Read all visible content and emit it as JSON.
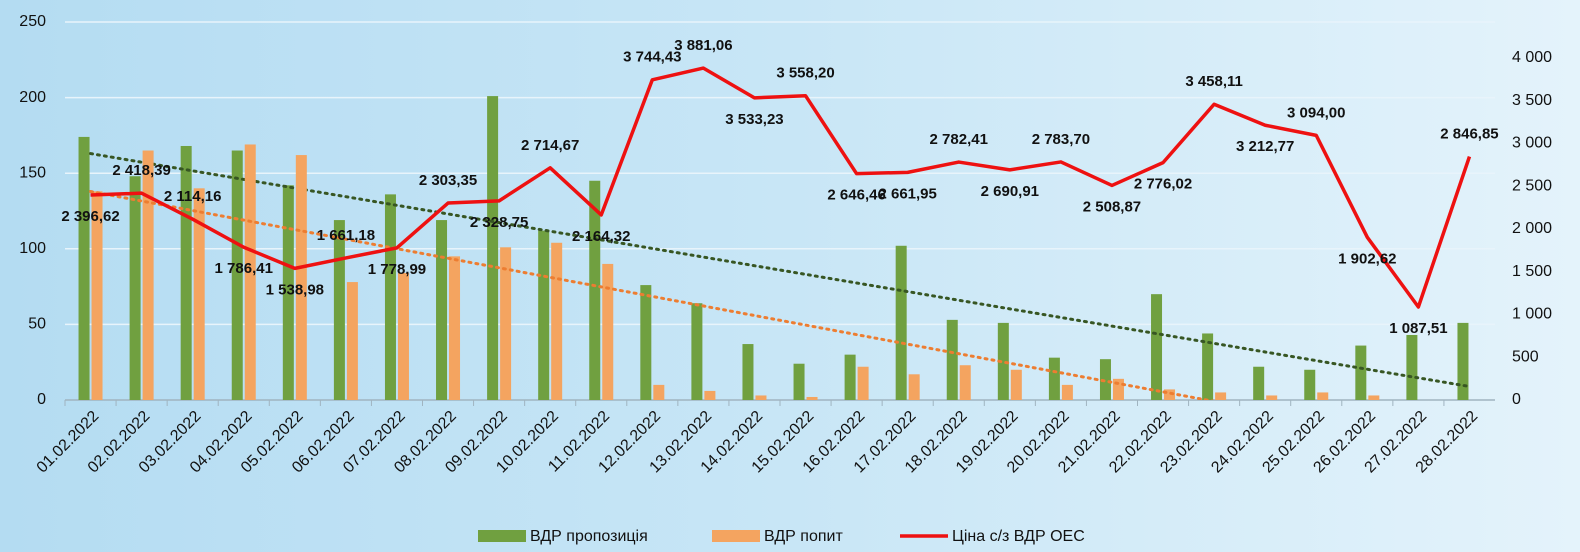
{
  "chart_data": {
    "type": "bar-line",
    "categories": [
      "01.02.2022",
      "02.02.2022",
      "03.02.2022",
      "04.02.2022",
      "05.02.2022",
      "06.02.2022",
      "07.02.2022",
      "08.02.2022",
      "09.02.2022",
      "10.02.2022",
      "11.02.2022",
      "12.02.2022",
      "13.02.2022",
      "14.02.2022",
      "15.02.2022",
      "16.02.2022",
      "17.02.2022",
      "18.02.2022",
      "19.02.2022",
      "20.02.2022",
      "21.02.2022",
      "22.02.2022",
      "23.02.2022",
      "24.02.2022",
      "25.02.2022",
      "26.02.2022",
      "27.02.2022",
      "28.02.2022"
    ],
    "series": [
      {
        "name": "ВДР пропозиція",
        "type": "bar",
        "color": "#70a040",
        "trendline": true,
        "trend_color": "#375623",
        "values": [
          174,
          148,
          168,
          165,
          142,
          119,
          136,
          119,
          201,
          112,
          145,
          76,
          64,
          37,
          24,
          30,
          102,
          53,
          51,
          28,
          27,
          70,
          44,
          22,
          20,
          36,
          43,
          51
        ]
      },
      {
        "name": "ВДР попит",
        "type": "bar",
        "color": "#f4a460",
        "trendline": true,
        "trend_color": "#ed7d31",
        "values": [
          138,
          165,
          140,
          169,
          162,
          78,
          84,
          95,
          101,
          104,
          90,
          10,
          6,
          3,
          2,
          22,
          17,
          23,
          20,
          10,
          14,
          7,
          5,
          3,
          5,
          3,
          0,
          0
        ]
      },
      {
        "name": "Ціна с/з ВДР ОЕС",
        "type": "line",
        "axis": "y2",
        "color": "#ee1111",
        "values": [
          2396.62,
          2418.39,
          2114.16,
          1786.41,
          1538.98,
          1661.18,
          1778.99,
          2303.35,
          2328.75,
          2714.67,
          2164.32,
          3744.43,
          3881.06,
          3533.23,
          3558.2,
          2646.46,
          2661.95,
          2782.41,
          2690.91,
          2783.7,
          2508.87,
          2776.02,
          3458.11,
          3212.77,
          3094,
          1902.62,
          1087.51,
          2846.85
        ],
        "value_labels": [
          "2 396,62",
          "2 418,39",
          "2 114,16",
          "1 786,41",
          "1 538,98",
          "1 661,18",
          "1 778,99",
          "2 303,35",
          "2 328,75",
          "2 714,67",
          "2 164,32",
          "3 744,43",
          "3 881,06",
          "3 533,23",
          "3 558,20",
          "2 646,46",
          "2 661,95",
          "2 782,41",
          "2 690,91",
          "2 783,70",
          "2 508,87",
          "2 776,02",
          "3 458,11",
          "3 212,77",
          "3 094,00",
          "1 902,62",
          "1 087,51",
          "2 846,85"
        ]
      }
    ],
    "ylim": [
      0,
      250
    ],
    "yticks": [
      0,
      50,
      100,
      150,
      200,
      250
    ],
    "y2lim": [
      0,
      4420
    ],
    "y2ticks": [
      0,
      500,
      {
        "value": 1000,
        "label": "1 000"
      },
      {
        "value": 1500,
        "label": "1 500"
      },
      {
        "value": 2000,
        "label": "2 000"
      },
      {
        "value": 2500,
        "label": "2 500"
      },
      {
        "value": 3000,
        "label": "3 000"
      },
      {
        "value": 3500,
        "label": "3 500"
      },
      {
        "value": 4000,
        "label": "4 000"
      }
    ],
    "grid": true,
    "legend": "bottom"
  }
}
